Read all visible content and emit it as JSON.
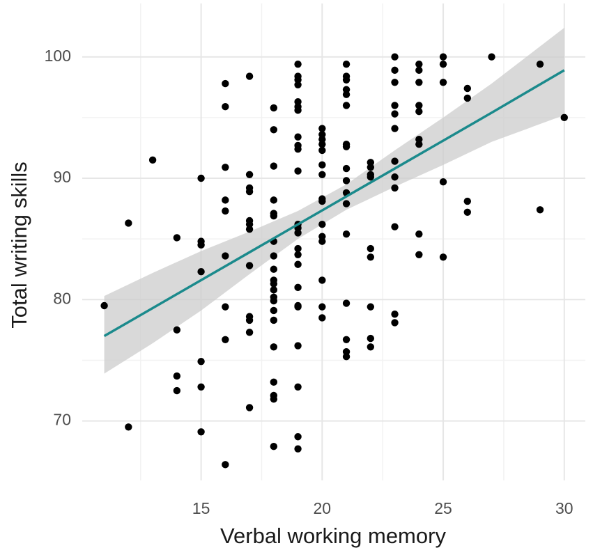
{
  "chart_data": {
    "type": "scatter",
    "x_label": "Verbal working memory",
    "y_label": "Total writing skills",
    "xlim": [
      10.09,
      30.87
    ],
    "ylim": [
      65.1,
      104.4
    ],
    "xticks": [
      15,
      20,
      25,
      30
    ],
    "yticks": [
      70,
      80,
      90,
      100
    ],
    "minor_xticks": [
      12.5,
      17.5,
      22.5,
      27.5
    ],
    "minor_yticks": [
      75,
      85,
      95
    ],
    "grid": true,
    "series": [
      {
        "color": "#000000",
        "x": [
          11,
          12,
          12,
          13,
          14,
          14,
          14,
          14,
          15,
          15,
          15,
          15,
          15,
          15,
          15,
          16,
          16,
          16,
          16,
          16,
          16,
          16,
          16,
          16,
          17,
          17,
          17,
          17,
          17,
          17,
          17,
          17,
          17,
          17,
          17,
          17,
          18,
          18,
          18,
          18,
          18,
          18,
          18,
          18,
          18,
          18,
          18,
          18,
          18,
          18,
          18,
          18,
          18,
          18,
          18,
          18,
          18,
          19,
          19,
          19,
          19,
          19,
          19,
          19,
          19,
          19,
          19,
          19,
          19,
          19,
          19,
          19,
          19,
          19,
          19,
          19,
          19,
          19,
          19,
          19,
          19,
          20,
          20,
          20,
          20,
          20,
          20,
          20,
          20,
          20,
          20,
          20,
          20,
          20,
          20,
          20,
          21,
          21,
          21,
          21,
          21,
          21,
          21,
          21,
          21,
          21,
          21,
          21,
          21,
          21,
          21,
          21,
          21,
          22,
          22,
          22,
          22,
          22,
          22,
          22,
          22,
          22,
          23,
          23,
          23,
          23,
          23,
          23,
          23,
          23,
          23,
          23,
          23,
          23,
          24,
          24,
          24,
          24,
          24,
          24,
          24,
          24,
          24,
          25,
          25,
          25,
          25,
          25,
          26,
          26,
          26,
          26,
          27,
          29,
          29,
          30
        ],
        "values": [
          79.5,
          86.3,
          69.5,
          91.5,
          85.1,
          77.5,
          73.7,
          72.5,
          90.0,
          84.8,
          84.5,
          82.3,
          74.9,
          72.8,
          69.1,
          97.8,
          95.9,
          90.9,
          88.2,
          87.3,
          83.6,
          79.4,
          76.7,
          66.4,
          98.4,
          90.3,
          89.2,
          88.9,
          86.5,
          86.2,
          85.8,
          82.8,
          78.6,
          78.3,
          77.3,
          71.1,
          95.8,
          94.0,
          91.0,
          88.2,
          87.1,
          86.9,
          84.8,
          83.6,
          82.5,
          81.6,
          81.3,
          80.8,
          80.2,
          79.9,
          79.1,
          78.3,
          76.1,
          73.2,
          72.1,
          71.8,
          67.9,
          99.4,
          98.4,
          98.1,
          97.7,
          96.3,
          95.9,
          95.6,
          93.4,
          92.7,
          92.4,
          90.6,
          86.2,
          85.9,
          85.5,
          84.2,
          83.7,
          82.9,
          81.0,
          79.5,
          79.4,
          76.2,
          72.8,
          68.7,
          67.7,
          94.1,
          93.6,
          93.2,
          92.8,
          92.3,
          91.1,
          90.3,
          88.3,
          88.1,
          86.2,
          85.2,
          84.8,
          81.6,
          79.4,
          78.5,
          99.4,
          98.4,
          98.1,
          97.3,
          96.9,
          96.0,
          92.8,
          92.6,
          90.8,
          89.8,
          88.8,
          87.9,
          85.4,
          79.7,
          76.7,
          75.7,
          75.3,
          91.3,
          90.9,
          90.3,
          90.1,
          84.2,
          83.5,
          79.4,
          76.8,
          76.1,
          100.0,
          98.9,
          97.9,
          96.0,
          95.3,
          94.1,
          91.4,
          90.1,
          89.2,
          86.0,
          78.8,
          78.1,
          99.4,
          98.9,
          97.9,
          96.0,
          95.5,
          93.2,
          92.8,
          85.4,
          83.7,
          100.0,
          99.4,
          97.9,
          89.7,
          83.5,
          97.4,
          96.6,
          88.1,
          87.2,
          100.0,
          99.4,
          87.4,
          95.0
        ]
      }
    ],
    "fit": {
      "color": "#1b8a8c",
      "band_color": "#cccccc",
      "x": [
        11,
        13,
        15,
        17,
        19,
        21,
        23,
        25,
        27,
        30
      ],
      "values": [
        77.0,
        79.3,
        81.6,
        83.9,
        86.2,
        88.5,
        90.8,
        93.1,
        95.4,
        98.9
      ],
      "upper": [
        80.3,
        82.2,
        84.0,
        85.6,
        87.3,
        89.5,
        92.3,
        95.0,
        97.8,
        102.4
      ],
      "lower": [
        73.9,
        76.4,
        79.1,
        82.1,
        85.0,
        87.4,
        89.3,
        91.1,
        93.0,
        95.2
      ]
    }
  }
}
